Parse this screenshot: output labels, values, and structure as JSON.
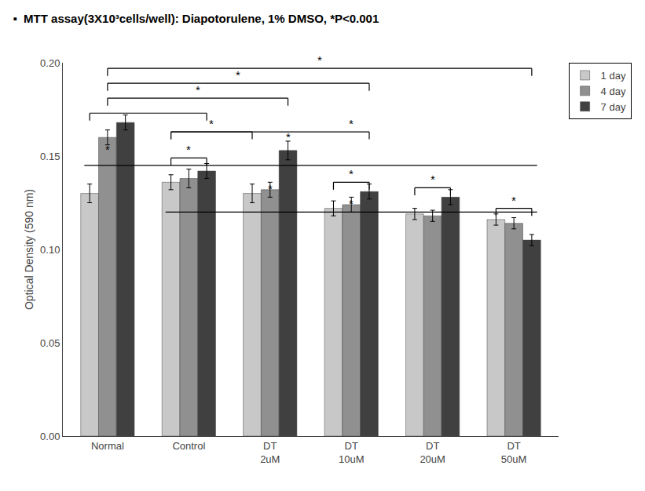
{
  "chart_data": {
    "type": "bar",
    "title": "▪  MTT assay(3X10³cells/well): Diapotorulene, 1% DMSO, *P<0.001",
    "ylabel": "Optical Density (590 nm)",
    "categories": [
      "Normal",
      "Control",
      "DT\n2uM",
      "DT\n10uM",
      "DT\n20uM",
      "DT\n50uM"
    ],
    "series": [
      {
        "name": "1 day",
        "color": "#c8c8c8",
        "values": [
          0.13,
          0.136,
          0.13,
          0.122,
          0.119,
          0.116
        ],
        "errors": [
          0.005,
          0.004,
          0.005,
          0.004,
          0.003,
          0.003
        ]
      },
      {
        "name": "4 day",
        "color": "#909090",
        "values": [
          0.16,
          0.138,
          0.132,
          0.124,
          0.118,
          0.114
        ],
        "errors": [
          0.004,
          0.005,
          0.004,
          0.004,
          0.003,
          0.003
        ]
      },
      {
        "name": "7 day",
        "color": "#404040",
        "values": [
          0.168,
          0.142,
          0.153,
          0.131,
          0.128,
          0.105
        ],
        "errors": [
          0.004,
          0.004,
          0.005,
          0.004,
          0.004,
          0.003
        ]
      }
    ],
    "ylim": [
      0.0,
      0.2
    ],
    "yticks": [
      {
        "value": 0.0,
        "label": "0.00"
      },
      {
        "value": 0.05,
        "label": "0.05"
      },
      {
        "value": 0.1,
        "label": "0.10"
      },
      {
        "value": 0.15,
        "label": "0.15"
      },
      {
        "value": 0.2,
        "label": "0.20"
      }
    ],
    "grid": false,
    "legend": "upper right",
    "reference_lines": [
      {
        "y": 0.145,
        "from": [
          "Normal",
          "1 day"
        ],
        "to": [
          "DT\n50uM",
          "7 day"
        ]
      },
      {
        "y": 0.12,
        "from": [
          "Control",
          "1 day"
        ],
        "to": [
          "DT\n50uM",
          "7 day"
        ]
      }
    ],
    "brackets": [
      {
        "y": 0.197,
        "from": [
          "Normal",
          "4 day"
        ],
        "to": [
          "DT\n50uM",
          "7 day"
        ],
        "label": "*"
      },
      {
        "y": 0.189,
        "from": [
          "Normal",
          "4 day"
        ],
        "to": [
          "DT\n10uM",
          "7 day"
        ],
        "label": "*"
      },
      {
        "y": 0.181,
        "from": [
          "Normal",
          "4 day"
        ],
        "to": [
          "DT\n2uM",
          "7 day"
        ],
        "label": "*"
      },
      {
        "y": 0.173,
        "from": [
          "Normal",
          "1 day"
        ],
        "to": [
          "Control",
          "7 day"
        ]
      },
      {
        "y": 0.149,
        "from": [
          "Control",
          "1 day"
        ],
        "to": [
          "Control",
          "7 day"
        ],
        "label": "*"
      },
      {
        "y": 0.163,
        "from": [
          "Control",
          "1 day"
        ],
        "to": [
          "DT\n2uM",
          "1 day"
        ],
        "label": "*"
      },
      {
        "y": 0.163,
        "from": [
          "Control",
          "1 day"
        ],
        "to": [
          "DT\n10uM",
          "7 day"
        ]
      },
      {
        "y": 0.136,
        "from": [
          "DT\n10uM",
          "1 day"
        ],
        "to": [
          "DT\n10uM",
          "7 day"
        ],
        "label": "*"
      },
      {
        "y": 0.133,
        "from": [
          "DT\n20uM",
          "1 day"
        ],
        "to": [
          "DT\n20uM",
          "7 day"
        ],
        "label": "*"
      },
      {
        "y": 0.122,
        "from": [
          "DT\n50uM",
          "1 day"
        ],
        "to": [
          "DT\n50uM",
          "7 day"
        ],
        "label": "*"
      }
    ],
    "annotations": [
      {
        "text": "*",
        "at": [
          "Normal",
          "4 day"
        ],
        "y": 0.149
      },
      {
        "text": "*",
        "at": [
          "DT\n2uM",
          "4 day"
        ],
        "y": 0.128
      },
      {
        "text": "*",
        "at": [
          "DT\n2uM",
          "7 day"
        ],
        "y": 0.156
      },
      {
        "text": "*",
        "at": [
          "DT\n10uM",
          "4 day"
        ],
        "y": 0.163
      },
      {
        "text": "*",
        "at": [
          "DT\n10uM",
          "4 day"
        ],
        "y": 0.12
      }
    ]
  }
}
